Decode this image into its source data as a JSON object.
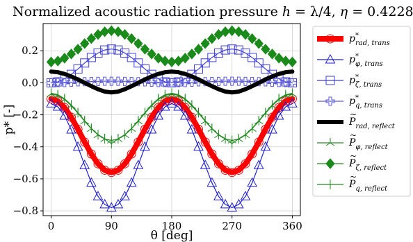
{
  "chart_data": {
    "type": "line",
    "title": "Normalized acoustic radiation pressure h = λ/4, η = 0.4228",
    "title_parts": {
      "prefix": "Normalized acoustic radiation pressure ",
      "h": "h",
      "eq1": " = λ/4, ",
      "eta": "η",
      "eq2": " = 0.4228"
    },
    "xlabel": "θ [deg]",
    "ylabel": "p* [-]",
    "xlim": [
      -12,
      372
    ],
    "ylim": [
      -0.83,
      0.37
    ],
    "xticks": [
      0,
      90,
      180,
      270,
      360
    ],
    "yticks": [
      -0.8,
      -0.6,
      -0.4,
      -0.2,
      0.0,
      0.2
    ],
    "ytick_labels": [
      "−0.8",
      "−0.6",
      "−0.4",
      "−0.2",
      "0.0",
      "0.2"
    ],
    "grid": true,
    "legend_position": "outside-right",
    "x": [
      0,
      10,
      20,
      30,
      40,
      50,
      60,
      70,
      80,
      90,
      100,
      110,
      120,
      130,
      140,
      150,
      160,
      170,
      180,
      190,
      200,
      210,
      220,
      230,
      240,
      250,
      260,
      270,
      280,
      290,
      300,
      310,
      320,
      330,
      340,
      350,
      360
    ],
    "series": [
      {
        "name": "p*_rad,trans",
        "legend_main": "p",
        "legend_sup": "*",
        "legend_sub": "rad, trans",
        "color": "#ff0000",
        "marker": "circle",
        "linewidth": 8,
        "values": [
          -0.1,
          -0.114,
          -0.154,
          -0.215,
          -0.29,
          -0.37,
          -0.445,
          -0.506,
          -0.546,
          -0.56,
          -0.546,
          -0.506,
          -0.445,
          -0.37,
          -0.29,
          -0.215,
          -0.154,
          -0.114,
          -0.1,
          -0.114,
          -0.154,
          -0.215,
          -0.29,
          -0.37,
          -0.445,
          -0.506,
          -0.546,
          -0.56,
          -0.546,
          -0.506,
          -0.445,
          -0.37,
          -0.29,
          -0.215,
          -0.154,
          -0.114,
          -0.1
        ]
      },
      {
        "name": "p*_φ,trans",
        "legend_main": "p",
        "legend_sup": "*",
        "legend_sub": "φ, trans",
        "color": "#1f1fcf",
        "marker": "triangle",
        "linewidth": 1.2,
        "values": [
          -0.13,
          -0.15,
          -0.206,
          -0.293,
          -0.4,
          -0.515,
          -0.625,
          -0.71,
          -0.76,
          -0.78,
          -0.76,
          -0.71,
          -0.625,
          -0.515,
          -0.4,
          -0.293,
          -0.206,
          -0.15,
          -0.13,
          -0.15,
          -0.206,
          -0.293,
          -0.4,
          -0.515,
          -0.625,
          -0.71,
          -0.76,
          -0.78,
          -0.76,
          -0.71,
          -0.625,
          -0.515,
          -0.4,
          -0.293,
          -0.206,
          -0.15,
          -0.13
        ]
      },
      {
        "name": "p*_ζ,trans",
        "legend_main": "p",
        "legend_sup": "*",
        "legend_sub": "ζ, trans",
        "color": "#3f3fd9",
        "marker": "square",
        "linewidth": 1.2,
        "values": [
          0.0,
          0.006,
          0.025,
          0.053,
          0.086,
          0.124,
          0.158,
          0.186,
          0.205,
          0.211,
          0.205,
          0.186,
          0.158,
          0.124,
          0.086,
          0.053,
          0.025,
          0.006,
          0.0,
          0.006,
          0.025,
          0.053,
          0.086,
          0.124,
          0.158,
          0.186,
          0.205,
          0.211,
          0.205,
          0.186,
          0.158,
          0.124,
          0.086,
          0.053,
          0.025,
          0.006,
          0.0
        ]
      },
      {
        "name": "p*_q,trans",
        "legend_main": "p",
        "legend_sup": "*",
        "legend_sub": "q, trans",
        "color": "#5a5ad6",
        "marker": "plus",
        "linewidth": 1.2,
        "values": [
          0.0,
          0.001,
          0.002,
          0.004,
          0.006,
          0.007,
          0.008,
          0.009,
          0.01,
          0.01,
          0.01,
          0.009,
          0.008,
          0.007,
          0.006,
          0.004,
          0.002,
          0.001,
          0.0,
          0.001,
          0.002,
          0.004,
          0.006,
          0.007,
          0.008,
          0.009,
          0.01,
          0.01,
          0.01,
          0.009,
          0.008,
          0.007,
          0.006,
          0.004,
          0.002,
          0.001,
          0.0
        ]
      },
      {
        "name": "P~_rad,reflect",
        "legend_main": "P",
        "legend_sup": "",
        "legend_sub": "rad, reflect",
        "color": "#000000",
        "marker": "none",
        "linewidth": 6,
        "values": [
          0.07,
          0.066,
          0.055,
          0.04,
          0.021,
          0.0,
          -0.021,
          -0.04,
          -0.055,
          -0.06,
          -0.055,
          -0.04,
          -0.021,
          0.0,
          0.021,
          0.04,
          0.055,
          0.066,
          0.07,
          0.066,
          0.055,
          0.04,
          0.021,
          0.0,
          -0.021,
          -0.04,
          -0.055,
          -0.06,
          -0.055,
          -0.04,
          -0.021,
          0.0,
          0.021,
          0.04,
          0.055,
          0.066,
          0.07
        ]
      },
      {
        "name": "P~_φ,reflect",
        "legend_main": "P",
        "legend_sup": "",
        "legend_sub": "φ, reflect",
        "color": "#228b22",
        "marker": "tri",
        "linewidth": 1.2,
        "values": [
          -0.07,
          -0.079,
          -0.104,
          -0.143,
          -0.19,
          -0.24,
          -0.287,
          -0.326,
          -0.351,
          -0.36,
          -0.351,
          -0.326,
          -0.287,
          -0.24,
          -0.19,
          -0.143,
          -0.104,
          -0.079,
          -0.07,
          -0.079,
          -0.104,
          -0.143,
          -0.19,
          -0.24,
          -0.287,
          -0.326,
          -0.351,
          -0.36,
          -0.351,
          -0.326,
          -0.287,
          -0.24,
          -0.19,
          -0.143,
          -0.104,
          -0.079,
          -0.07
        ]
      },
      {
        "name": "P~_ζ,reflect",
        "legend_main": "P",
        "legend_sup": "",
        "legend_sub": "ζ, reflect",
        "color": "#1a8a1a",
        "marker": "diamond",
        "linewidth": 1.2,
        "values": [
          0.13,
          0.136,
          0.154,
          0.18,
          0.21,
          0.245,
          0.276,
          0.302,
          0.319,
          0.325,
          0.319,
          0.302,
          0.276,
          0.245,
          0.21,
          0.18,
          0.154,
          0.136,
          0.13,
          0.136,
          0.154,
          0.18,
          0.21,
          0.245,
          0.276,
          0.302,
          0.319,
          0.325,
          0.319,
          0.302,
          0.276,
          0.245,
          0.21,
          0.18,
          0.154,
          0.136,
          0.13
        ]
      },
      {
        "name": "P~_q,reflect",
        "legend_main": "P",
        "legend_sup": "",
        "legend_sub": "q, reflect",
        "color": "#228b22",
        "marker": "vline",
        "linewidth": 1.2,
        "values": [
          -0.065,
          -0.074,
          -0.099,
          -0.138,
          -0.186,
          -0.237,
          -0.285,
          -0.324,
          -0.349,
          -0.38,
          -0.349,
          -0.324,
          -0.285,
          -0.237,
          -0.186,
          -0.138,
          -0.099,
          -0.074,
          -0.065,
          -0.074,
          -0.099,
          -0.138,
          -0.186,
          -0.237,
          -0.285,
          -0.324,
          -0.349,
          -0.38,
          -0.349,
          -0.324,
          -0.285,
          -0.237,
          -0.186,
          -0.138,
          -0.099,
          -0.074,
          -0.065
        ]
      }
    ]
  }
}
